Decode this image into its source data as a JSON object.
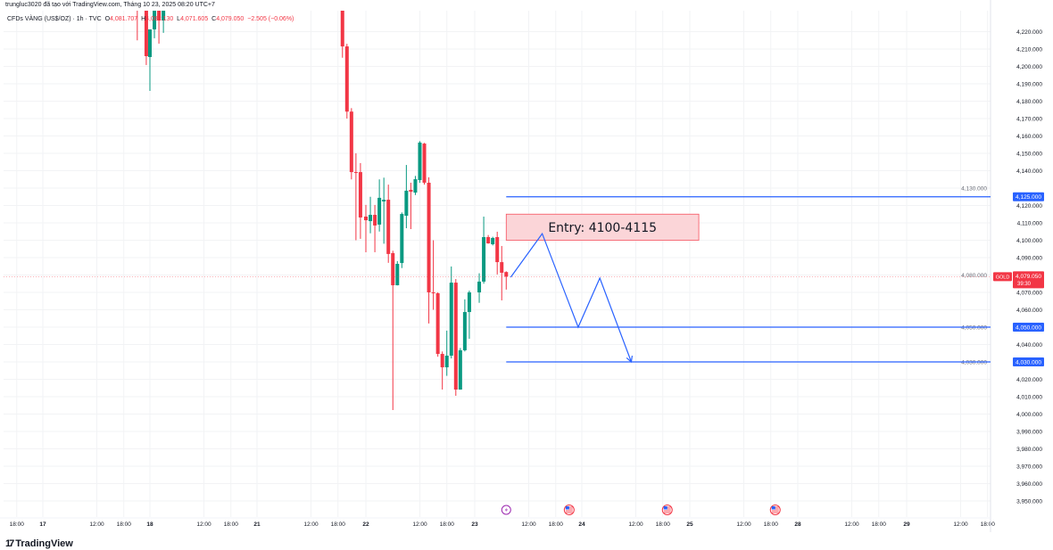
{
  "header": {
    "credit": "trungluc3020 đã tạo với TradingView.com, Tháng 10 23, 2025 08:20 UTC+7",
    "symbol": "CFDs VÀNG (US$/OZ) · 1h · TVC",
    "open_label": "O",
    "open": "4,081.707",
    "high_label": "H",
    "high": "4,082.130",
    "low_label": "L",
    "low": "4,071.605",
    "close_label": "C",
    "close": "4,079.050",
    "change": "−2.505 (−0.06%)"
  },
  "brand": {
    "name": "TradingView"
  },
  "colors": {
    "up": "#089981",
    "down": "#f23645",
    "line": "#2962ff",
    "entry_fill": "#fbd5d8",
    "entry_border": "#f7525f",
    "event_purple": "#9c27b0"
  },
  "price_axis": {
    "ticks": [
      "4,220.000",
      "4,210.000",
      "4,200.000",
      "4,190.000",
      "4,180.000",
      "4,170.000",
      "4,160.000",
      "4,150.000",
      "4,140.000",
      "4,130.000",
      "4,120.000",
      "4,110.000",
      "4,100.000",
      "4,090.000",
      "4,080.000",
      "4,070.000",
      "4,060.000",
      "4,050.000",
      "4,040.000",
      "4,030.000",
      "4,020.000",
      "4,010.000",
      "4,000.000",
      "3,990.000",
      "3,980.000",
      "3,970.000",
      "3,960.000",
      "3,950.000"
    ],
    "range": [
      3945,
      4232
    ],
    "current": {
      "symbol_tag": "GOLD",
      "price": 4079.05,
      "price_label": "4,079.050",
      "countdown": "39:30"
    },
    "level_labels": [
      {
        "price": 4125,
        "label": "4,125.000"
      },
      {
        "price": 4050,
        "label": "4,050.000"
      },
      {
        "price": 4030,
        "label": "4,030.000"
      }
    ]
  },
  "time_axis": {
    "labels": [
      {
        "day": "16",
        "time": "18:00",
        "text": "18:00",
        "bold": false
      },
      {
        "day": "17",
        "time": "00:00",
        "text": "17",
        "bold": true
      },
      {
        "day": "17",
        "time": "12:00",
        "text": "12:00",
        "bold": false
      },
      {
        "day": "17",
        "time": "18:00",
        "text": "18:00",
        "bold": false
      },
      {
        "day": "18",
        "time": "00:00",
        "text": "18",
        "bold": true
      },
      {
        "day": "18",
        "time": "12:00",
        "text": "12:00",
        "bold": false
      },
      {
        "day": "18",
        "time": "18:00",
        "text": "18:00",
        "bold": false
      },
      {
        "day": "21",
        "time": "00:00",
        "text": "21",
        "bold": true
      },
      {
        "day": "21",
        "time": "12:00",
        "text": "12:00",
        "bold": false
      },
      {
        "day": "21",
        "time": "18:00",
        "text": "18:00",
        "bold": false
      },
      {
        "day": "22",
        "time": "00:00",
        "text": "22",
        "bold": true
      },
      {
        "day": "22",
        "time": "12:00",
        "text": "12:00",
        "bold": false
      },
      {
        "day": "22",
        "time": "18:00",
        "text": "18:00",
        "bold": false
      },
      {
        "day": "23",
        "time": "00:00",
        "text": "23",
        "bold": true
      },
      {
        "day": "23",
        "time": "12:00",
        "text": "12:00",
        "bold": false
      },
      {
        "day": "23",
        "time": "18:00",
        "text": "18:00",
        "bold": false
      },
      {
        "day": "24",
        "time": "00:00",
        "text": "24",
        "bold": true
      },
      {
        "day": "24",
        "time": "12:00",
        "text": "12:00",
        "bold": false
      },
      {
        "day": "24",
        "time": "18:00",
        "text": "18:00",
        "bold": false
      },
      {
        "day": "25",
        "time": "00:00",
        "text": "25",
        "bold": true
      },
      {
        "day": "25",
        "time": "12:00",
        "text": "12:00",
        "bold": false
      },
      {
        "day": "25",
        "time": "18:00",
        "text": "18:00",
        "bold": false
      },
      {
        "day": "28",
        "time": "00:00",
        "text": "28",
        "bold": true
      },
      {
        "day": "28",
        "time": "12:00",
        "text": "12:00",
        "bold": false
      },
      {
        "day": "28",
        "time": "18:00",
        "text": "18:00",
        "bold": false
      },
      {
        "day": "29",
        "time": "00:00",
        "text": "29",
        "bold": true
      },
      {
        "day": "29",
        "time": "12:00",
        "text": "12:00",
        "bold": false
      },
      {
        "day": "29",
        "time": "18:00",
        "text": "18:00",
        "bold": false
      }
    ],
    "events": [
      {
        "type": "lightning-icon",
        "day": "23",
        "time": "07:00"
      },
      {
        "type": "us-flag-icon",
        "day": "23",
        "time": "21:00"
      },
      {
        "type": "us-flag-icon",
        "day": "24",
        "time": "19:00"
      },
      {
        "type": "us-flag-icon",
        "day": "25",
        "time": "19:00"
      }
    ]
  },
  "candles": [
    {
      "day": "17",
      "time": "21:00",
      "o": 4240,
      "h": 4240,
      "l": 4215,
      "c": 4238
    },
    {
      "day": "17",
      "time": "23:00",
      "o": 4240,
      "h": 4240,
      "l": 4200.8,
      "c": 4205.9
    },
    {
      "day": "18",
      "time": "00:00",
      "o": 4205.4,
      "h": 4221.3,
      "l": 4185.9,
      "c": 4221.3
    },
    {
      "day": "18",
      "time": "01:00",
      "o": 4221.3,
      "h": 4240,
      "l": 4216.2,
      "c": 4240
    },
    {
      "day": "18",
      "time": "02:00",
      "o": 4240,
      "h": 4240,
      "l": 4213.1,
      "c": 4226.4
    },
    {
      "day": "18",
      "time": "03:00",
      "o": 4226.4,
      "h": 4240,
      "l": 4219.3,
      "c": 4240
    },
    {
      "day": "21",
      "time": "19:00",
      "o": 4240,
      "h": 4240,
      "l": 4205,
      "c": 4211.5
    },
    {
      "day": "21",
      "time": "20:00",
      "o": 4211.5,
      "h": 4213,
      "l": 4170,
      "c": 4174
    },
    {
      "day": "21",
      "time": "21:00",
      "o": 4174,
      "h": 4176,
      "l": 4135,
      "c": 4139.2
    },
    {
      "day": "21",
      "time": "22:00",
      "o": 4139.2,
      "h": 4150,
      "l": 4100,
      "c": 4139
    },
    {
      "day": "21",
      "time": "23:00",
      "o": 4139.2,
      "h": 4144.4,
      "l": 4100.8,
      "c": 4113.1
    },
    {
      "day": "22",
      "time": "00:00",
      "o": 4113.6,
      "h": 4120.3,
      "l": 4093.1,
      "c": 4111.5
    },
    {
      "day": "22",
      "time": "01:00",
      "o": 4111,
      "h": 4125,
      "l": 4104,
      "c": 4114.6
    },
    {
      "day": "22",
      "time": "02:00",
      "o": 4114.6,
      "h": 4120.3,
      "l": 4093.1,
      "c": 4108.5
    },
    {
      "day": "22",
      "time": "03:00",
      "o": 4109,
      "h": 4135,
      "l": 4105,
      "c": 4124.4
    },
    {
      "day": "22",
      "time": "04:00",
      "o": 4122.3,
      "h": 4136,
      "l": 4098,
      "c": 4123.3
    },
    {
      "day": "22",
      "time": "05:00",
      "o": 4123.3,
      "h": 4132,
      "l": 4087,
      "c": 4092.1
    },
    {
      "day": "22",
      "time": "06:00",
      "o": 4092.6,
      "h": 4094,
      "l": 4002.3,
      "c": 4074.1
    },
    {
      "day": "22",
      "time": "07:00",
      "o": 4074.1,
      "h": 4088,
      "l": 4074,
      "c": 4086.4
    },
    {
      "day": "22",
      "time": "08:00",
      "o": 4086.9,
      "h": 4116,
      "l": 4084,
      "c": 4115.1
    },
    {
      "day": "22",
      "time": "09:00",
      "o": 4114.1,
      "h": 4143.3,
      "l": 4106.9,
      "c": 4128.5
    },
    {
      "day": "22",
      "time": "10:00",
      "o": 4129,
      "h": 4133.1,
      "l": 4106.4,
      "c": 4127.9
    },
    {
      "day": "22",
      "time": "11:00",
      "o": 4127.4,
      "h": 4137,
      "l": 4126,
      "c": 4135.1
    },
    {
      "day": "22",
      "time": "12:00",
      "o": 4134.6,
      "h": 4157,
      "l": 4133,
      "c": 4156.2
    },
    {
      "day": "22",
      "time": "13:00",
      "o": 4155.6,
      "h": 4156,
      "l": 4132,
      "c": 4133.1
    },
    {
      "day": "22",
      "time": "14:00",
      "o": 4133.1,
      "h": 4136.2,
      "l": 4052.1,
      "c": 4070
    },
    {
      "day": "22",
      "time": "15:00",
      "o": 4070,
      "h": 4100,
      "l": 4060,
      "c": 4069.5
    },
    {
      "day": "22",
      "time": "16:00",
      "o": 4069.5,
      "h": 4070,
      "l": 4033,
      "c": 4034.6
    },
    {
      "day": "22",
      "time": "17:00",
      "o": 4034.6,
      "h": 4036,
      "l": 4014.1,
      "c": 4026.9
    },
    {
      "day": "22",
      "time": "18:00",
      "o": 4026.9,
      "h": 4048,
      "l": 4022,
      "c": 4033.6
    },
    {
      "day": "22",
      "time": "19:00",
      "o": 4033.6,
      "h": 4084.9,
      "l": 4032,
      "c": 4075.6
    },
    {
      "day": "22",
      "time": "20:00",
      "o": 4075.6,
      "h": 4077.7,
      "l": 4010.5,
      "c": 4014.1
    },
    {
      "day": "22",
      "time": "21:00",
      "o": 4014.1,
      "h": 4038,
      "l": 4014,
      "c": 4036.7
    },
    {
      "day": "22",
      "time": "22:00",
      "o": 4036.7,
      "h": 4066,
      "l": 4036,
      "c": 4058.7
    },
    {
      "day": "22",
      "time": "23:00",
      "o": 4058.7,
      "h": 4071,
      "l": 4043.3,
      "c": 4070
    },
    {
      "day": "23",
      "time": "01:00",
      "o": 4070,
      "h": 4081,
      "l": 4064,
      "c": 4076.2
    },
    {
      "day": "23",
      "time": "02:00",
      "o": 4076.2,
      "h": 4113.6,
      "l": 4075,
      "c": 4101.8
    },
    {
      "day": "23",
      "time": "03:00",
      "o": 4101.8,
      "h": 4103,
      "l": 4098,
      "c": 4098.2
    },
    {
      "day": "23",
      "time": "04:00",
      "o": 4097.7,
      "h": 4102,
      "l": 4097,
      "c": 4101.3
    },
    {
      "day": "23",
      "time": "05:00",
      "o": 4101.8,
      "h": 4104.9,
      "l": 4080.3,
      "c": 4087.4
    },
    {
      "day": "23",
      "time": "06:00",
      "o": 4087.4,
      "h": 4096.7,
      "l": 4065.4,
      "c": 4081.3
    },
    {
      "day": "23",
      "time": "07:00",
      "o": 4081.707,
      "h": 4082.13,
      "l": 4071.605,
      "c": 4079.05
    }
  ],
  "drawings": {
    "entry_box": {
      "label": "Entry: 4100-4115",
      "price_low": 4100,
      "price_high": 4115,
      "start": {
        "day": "23",
        "time": "07:00"
      },
      "end": {
        "day": "25",
        "time": "02:00"
      }
    },
    "horizontal_lines": [
      {
        "price": 4125,
        "start": {
          "day": "23",
          "time": "07:00"
        }
      },
      {
        "price": 4050,
        "start": {
          "day": "23",
          "time": "07:00"
        }
      },
      {
        "price": 4030,
        "start": {
          "day": "23",
          "time": "07:00"
        }
      }
    ],
    "path": [
      {
        "day": "23",
        "time": "08:00",
        "price": 4078.7
      },
      {
        "day": "23",
        "time": "15:00",
        "price": 4103.8
      },
      {
        "day": "23",
        "time": "23:00",
        "price": 4050
      },
      {
        "day": "24",
        "time": "04:00",
        "price": 4078.2
      },
      {
        "day": "24",
        "time": "11:00",
        "price": 4030
      }
    ]
  }
}
